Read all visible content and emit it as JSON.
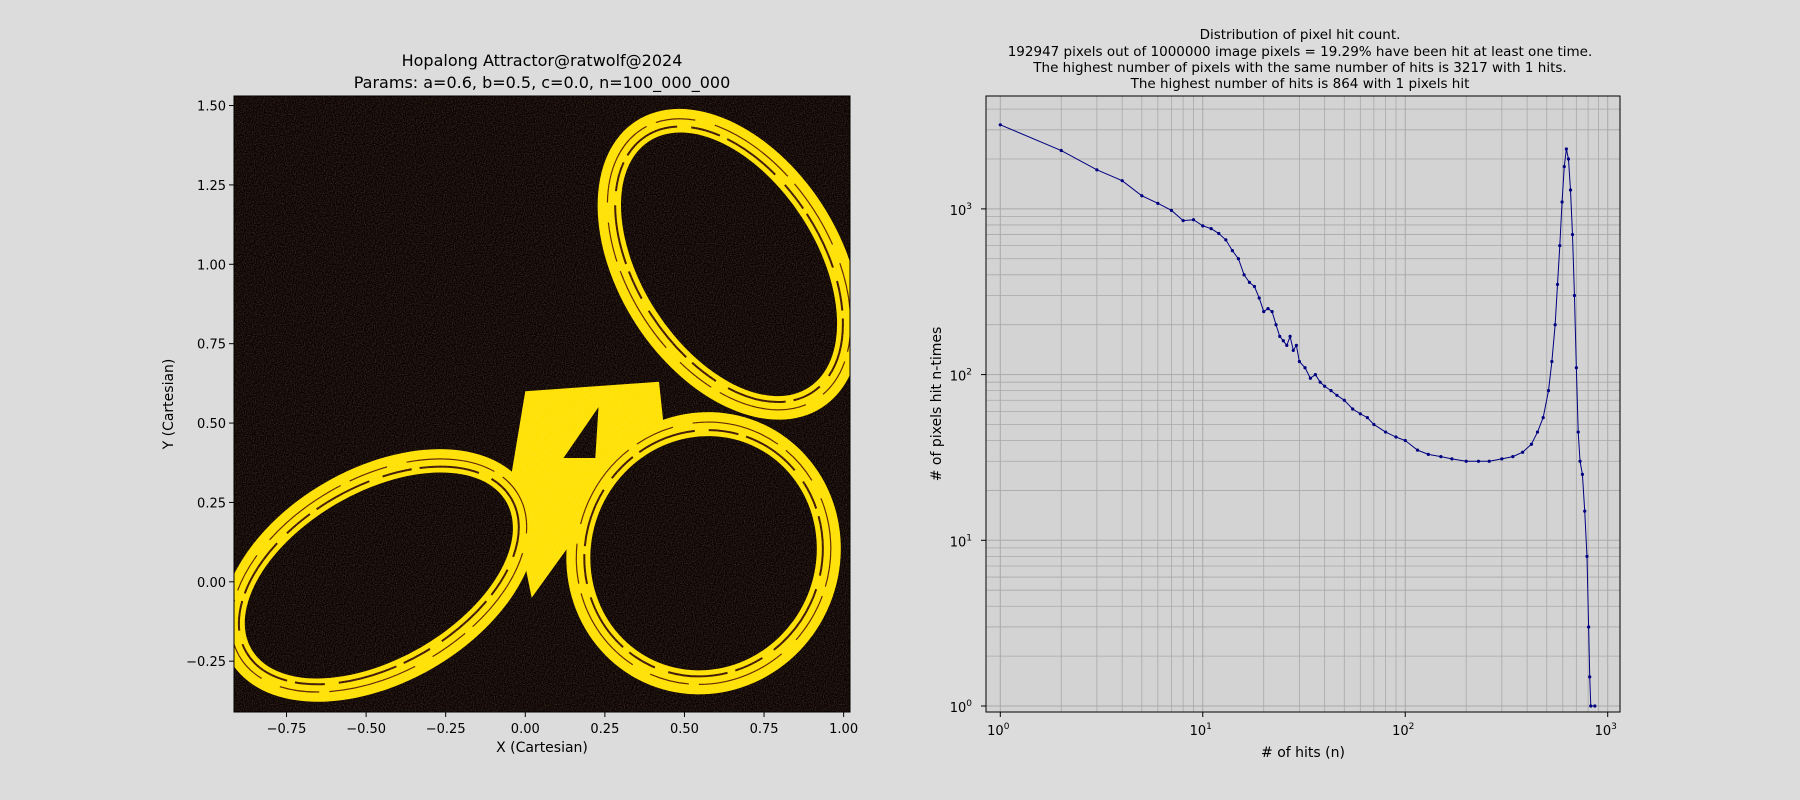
{
  "figure": {
    "background": "#dcdcdc"
  },
  "chart_data": [
    {
      "type": "heatmap",
      "title_lines": [
        "Hopalong Attractor@ratwolf@2024",
        "Params: a=0.6, b=0.5, c=0.0, n=100_000_000"
      ],
      "xlabel": "X (Cartesian)",
      "ylabel": "Y (Cartesian)",
      "xlim": [
        -0.915,
        1.02
      ],
      "ylim": [
        -0.41,
        1.53
      ],
      "xticks": [
        -0.75,
        -0.5,
        -0.25,
        0.0,
        0.25,
        0.5,
        0.75,
        1.0
      ],
      "xtick_labels": [
        "−0.75",
        "−0.50",
        "−0.25",
        "0.00",
        "0.25",
        "0.50",
        "0.75",
        "1.00"
      ],
      "yticks": [
        -0.25,
        0.0,
        0.25,
        0.5,
        0.75,
        1.0,
        1.25,
        1.5
      ],
      "ytick_labels": [
        "−0.25",
        "0.00",
        "0.25",
        "0.50",
        "0.75",
        "1.00",
        "1.25",
        "1.50"
      ],
      "background_color": "#0b0000",
      "point_color": "#ffe000",
      "lobes": [
        {
          "name": "upper",
          "center": [
            0.64,
            1.0
          ],
          "rx": 0.31,
          "ry": 0.5,
          "rotation_deg": 33
        },
        {
          "name": "lower-left",
          "center": [
            -0.46,
            0.02
          ],
          "rx": 0.5,
          "ry": 0.3,
          "rotation_deg": 30
        },
        {
          "name": "lower-right",
          "center": [
            0.56,
            0.09
          ],
          "rx": 0.39,
          "ry": 0.41,
          "rotation_deg": -25
        }
      ]
    },
    {
      "type": "line",
      "title_lines": [
        "Distribution of pixel hit count.",
        "192947 pixels out of 1000000 image pixels = 19.29% have been hit at least one time.",
        "The highest number of pixels with the same number of hits is 3217 with 1 hits.",
        "The highest number of hits is 864 with 1 pixels hit"
      ],
      "xlabel": "# of hits (n)",
      "ylabel": "# of pixels hit n-times",
      "xscale": "log",
      "yscale": "log",
      "xlim": [
        0.85,
        1150
      ],
      "ylim": [
        0.92,
        4800
      ],
      "xticks": [
        1,
        10,
        100,
        1000
      ],
      "xtick_labels": [
        [
          "10",
          "0"
        ],
        [
          "10",
          "1"
        ],
        [
          "10",
          "2"
        ],
        [
          "10",
          "3"
        ]
      ],
      "yticks": [
        1,
        10,
        100,
        1000
      ],
      "ytick_labels": [
        [
          "10",
          "0"
        ],
        [
          "10",
          "1"
        ],
        [
          "10",
          "2"
        ],
        [
          "10",
          "3"
        ]
      ],
      "grid": true,
      "line_color": "#000080",
      "plot_background": "#d3d3d3",
      "series": [
        {
          "points": [
            [
              1,
              3217
            ],
            [
              2,
              2250
            ],
            [
              3,
              1720
            ],
            [
              4,
              1480
            ],
            [
              5,
              1200
            ],
            [
              6,
              1080
            ],
            [
              7,
              980
            ],
            [
              8,
              850
            ],
            [
              9,
              860
            ],
            [
              10,
              790
            ],
            [
              11,
              760
            ],
            [
              12,
              710
            ],
            [
              13,
              650
            ],
            [
              14,
              560
            ],
            [
              15,
              500
            ],
            [
              16,
              400
            ],
            [
              17,
              360
            ],
            [
              18,
              340
            ],
            [
              19,
              290
            ],
            [
              20,
              240
            ],
            [
              21,
              250
            ],
            [
              22,
              240
            ],
            [
              23,
              200
            ],
            [
              24,
              170
            ],
            [
              25,
              160
            ],
            [
              26,
              150
            ],
            [
              27,
              170
            ],
            [
              28,
              140
            ],
            [
              29,
              150
            ],
            [
              30,
              120
            ],
            [
              32,
              110
            ],
            [
              34,
              95
            ],
            [
              36,
              100
            ],
            [
              38,
              90
            ],
            [
              40,
              85
            ],
            [
              43,
              80
            ],
            [
              46,
              75
            ],
            [
              50,
              70
            ],
            [
              55,
              62
            ],
            [
              60,
              58
            ],
            [
              65,
              55
            ],
            [
              70,
              50
            ],
            [
              80,
              45
            ],
            [
              90,
              42
            ],
            [
              100,
              40
            ],
            [
              115,
              35
            ],
            [
              130,
              33
            ],
            [
              150,
              32
            ],
            [
              170,
              31
            ],
            [
              200,
              30
            ],
            [
              230,
              30
            ],
            [
              260,
              30
            ],
            [
              300,
              31
            ],
            [
              340,
              32
            ],
            [
              380,
              34
            ],
            [
              420,
              38
            ],
            [
              450,
              45
            ],
            [
              480,
              55
            ],
            [
              510,
              80
            ],
            [
              530,
              120
            ],
            [
              550,
              200
            ],
            [
              565,
              350
            ],
            [
              580,
              600
            ],
            [
              595,
              1100
            ],
            [
              610,
              1800
            ],
            [
              625,
              2300
            ],
            [
              640,
              2000
            ],
            [
              655,
              1300
            ],
            [
              670,
              700
            ],
            [
              685,
              300
            ],
            [
              700,
              110
            ],
            [
              715,
              45
            ],
            [
              730,
              30
            ],
            [
              750,
              25
            ],
            [
              770,
              15
            ],
            [
              790,
              8
            ],
            [
              805,
              3
            ],
            [
              815,
              1.5
            ],
            [
              825,
              1
            ],
            [
              864,
              1
            ]
          ]
        }
      ]
    }
  ]
}
